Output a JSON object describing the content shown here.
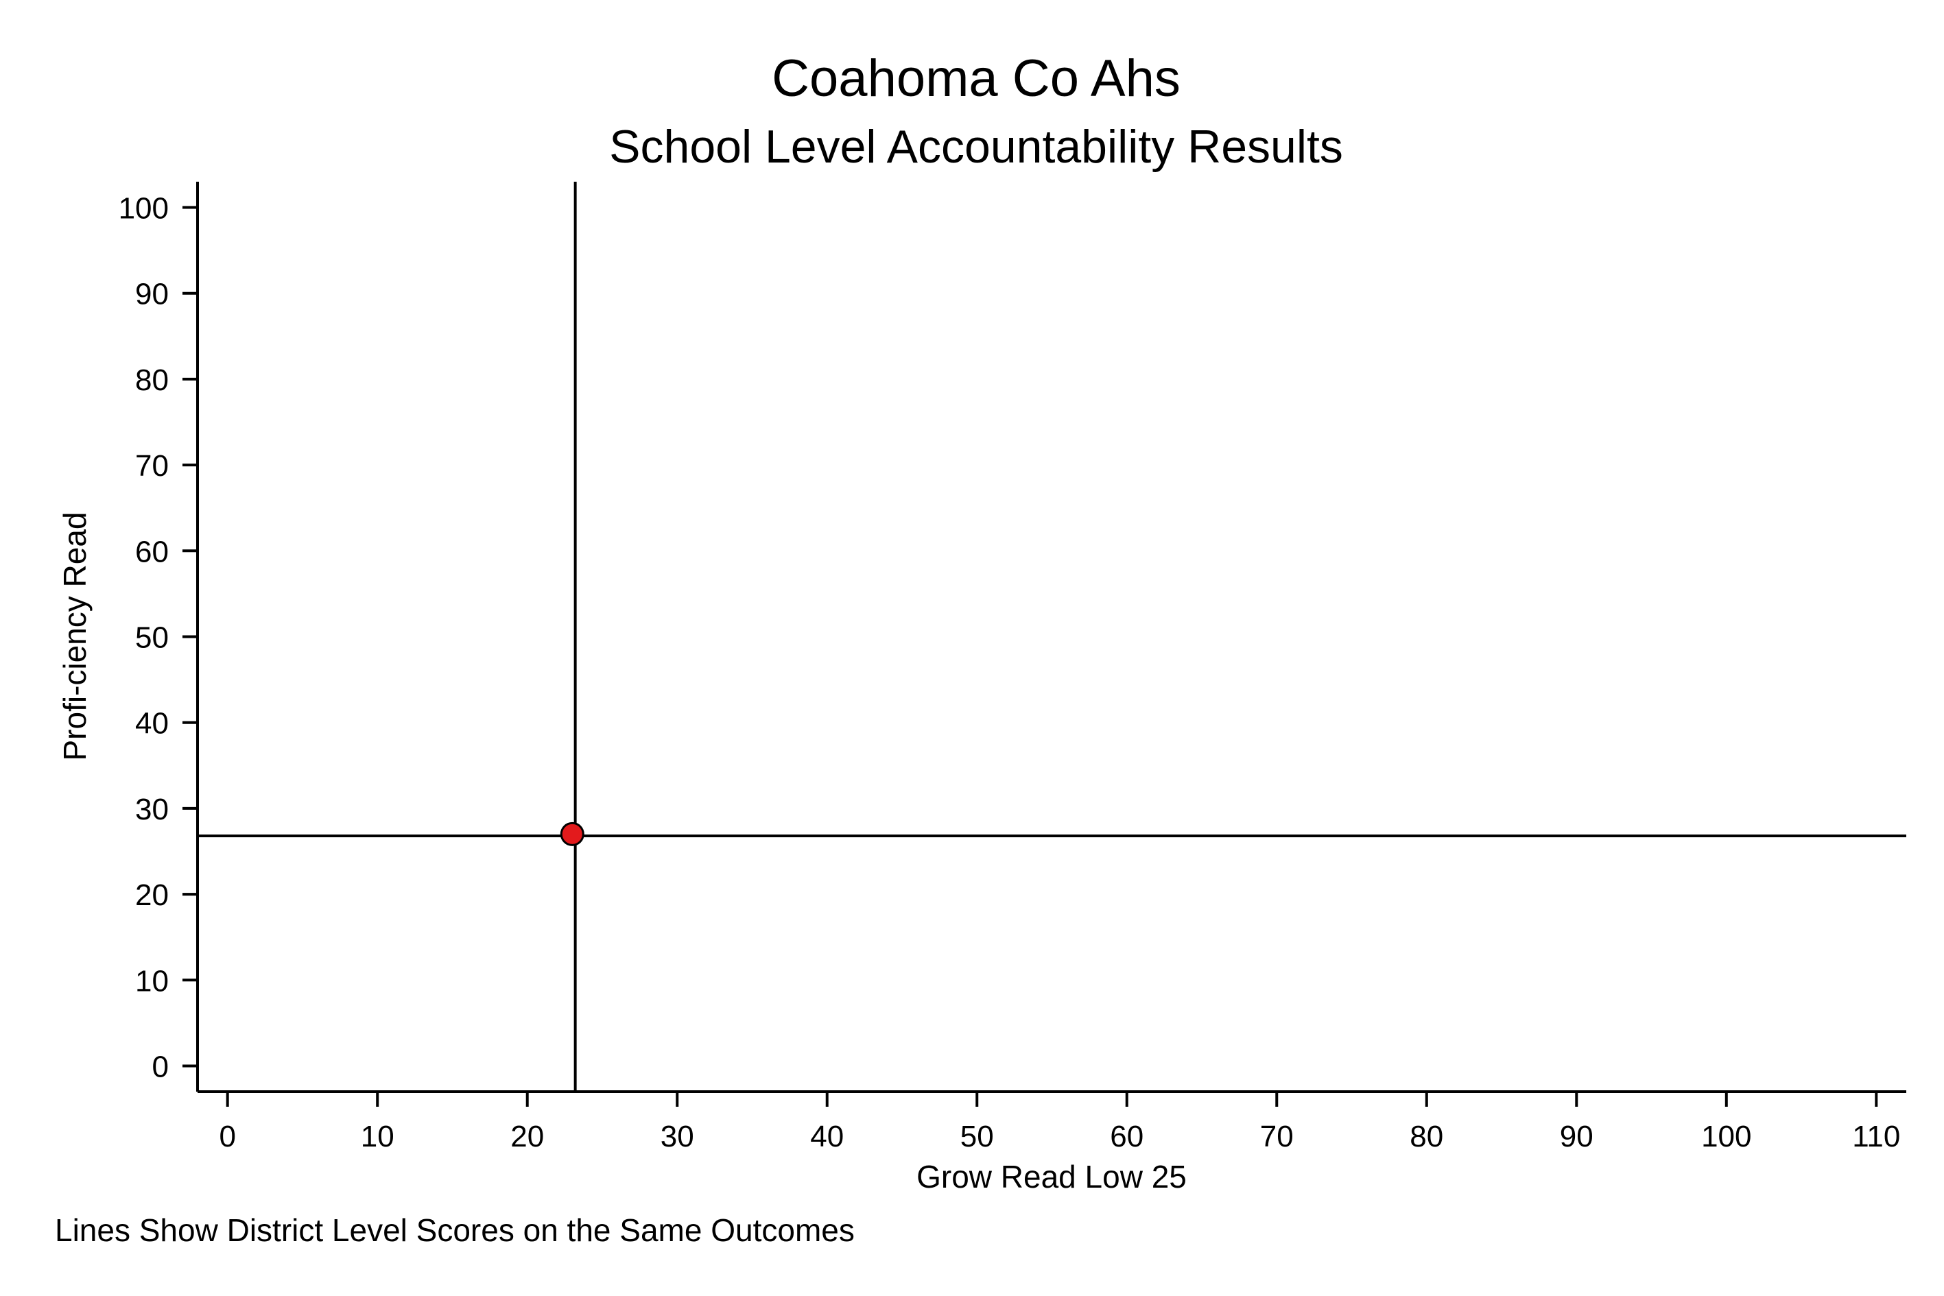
{
  "chart_data": {
    "type": "scatter",
    "title": "Coahoma Co Ahs",
    "subtitle": "School Level Accountability Results",
    "xlabel": "Grow Read Low 25",
    "ylabel": "Profi-ciency Read",
    "note": "Lines Show District Level Scores on the Same Outcomes",
    "xlim": [
      -2,
      112
    ],
    "ylim": [
      -3,
      103
    ],
    "xticks": [
      0,
      10,
      20,
      30,
      40,
      50,
      60,
      70,
      80,
      90,
      100,
      110
    ],
    "yticks": [
      0,
      10,
      20,
      30,
      40,
      50,
      60,
      70,
      80,
      90,
      100
    ],
    "grid": false,
    "points": [
      {
        "x": 23,
        "y": 27
      }
    ],
    "reference_lines": {
      "x": 23.2,
      "y": 26.8
    },
    "colors": {
      "point_fill": "#e31a1c",
      "point_stroke": "#000000",
      "axis": "#000000",
      "reference_line": "#000000"
    }
  }
}
